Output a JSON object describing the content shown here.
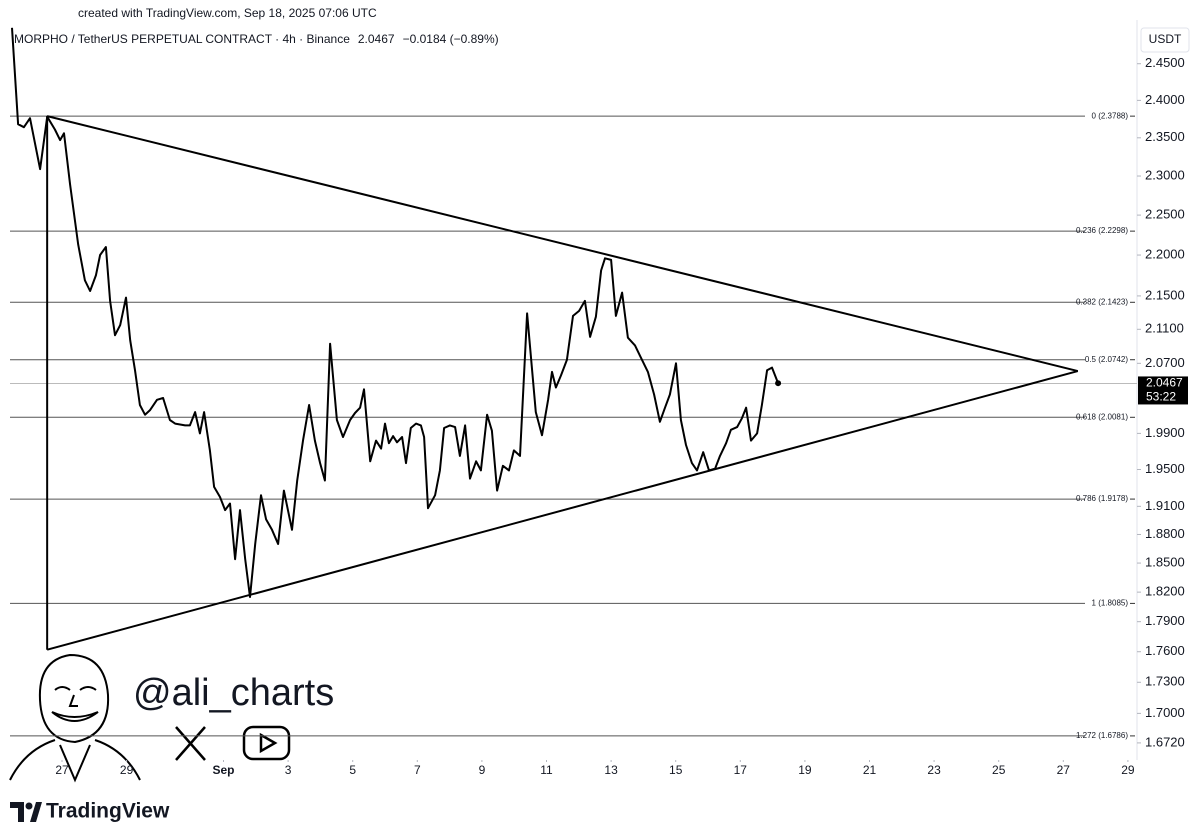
{
  "header": {
    "credit": "created with TradingView.com, Sep 18, 2025 07:06 UTC",
    "symbol": "MORPHO / TetherUS PERPETUAL CONTRACT · 4h · Binance",
    "change": "−0.0184 (−0.89%)"
  },
  "chart_data": {
    "type": "line",
    "currency": "USDT",
    "color": "#000000",
    "log": true,
    "x": [
      -1.55,
      -1.36,
      -1.18,
      -0.99,
      -0.68,
      -0.46,
      -0.22,
      -0.06,
      0.06,
      0.25,
      0.5,
      0.71,
      0.87,
      1.05,
      1.18,
      1.36,
      1.49,
      1.64,
      1.8,
      1.98,
      2.11,
      2.26,
      2.41,
      2.57,
      2.72,
      2.94,
      3.13,
      3.34,
      3.5,
      3.81,
      3.96,
      4.12,
      4.27,
      4.4,
      4.58,
      4.71,
      4.89,
      5.05,
      5.2,
      5.36,
      5.51,
      5.67,
      5.82,
      5.98,
      6.16,
      6.32,
      6.5,
      6.69,
      6.87,
      7.12,
      7.28,
      7.46,
      7.65,
      7.83,
      7.99,
      8.14,
      8.3,
      8.51,
      8.7,
      8.92,
      9.07,
      9.23,
      9.35,
      9.54,
      9.72,
      9.88,
      10.0,
      10.12,
      10.25,
      10.37,
      10.53,
      10.65,
      10.8,
      10.96,
      11.11,
      11.21,
      11.33,
      11.55,
      11.7,
      11.83,
      12.01,
      12.17,
      12.32,
      12.48,
      12.63,
      12.82,
      12.97,
      13.16,
      13.31,
      13.47,
      13.65,
      13.84,
      13.99,
      14.18,
      14.4,
      14.67,
      14.86,
      15.05,
      15.17,
      15.29,
      15.45,
      15.63,
      15.82,
      16.01,
      16.19,
      16.35,
      16.53,
      16.69,
      16.81,
      17.0,
      17.15,
      17.34,
      17.52,
      17.74,
      17.89,
      18.14,
      18.33,
      18.51,
      18.67,
      18.82,
      19.01,
      19.16,
      19.32,
      19.5,
      19.66,
      19.85,
      20.03,
      20.22,
      20.37,
      20.56,
      20.71,
      20.9,
      21.05,
      21.18,
      21.33,
      21.52,
      21.67,
      21.83,
      21.98,
      22.17
    ],
    "values": [
      2.5,
      2.368,
      2.364,
      2.376,
      2.309,
      2.378,
      2.361,
      2.347,
      2.356,
      2.289,
      2.213,
      2.169,
      2.156,
      2.175,
      2.2,
      2.21,
      2.144,
      2.103,
      2.115,
      2.148,
      2.097,
      2.062,
      2.022,
      2.011,
      2.016,
      2.028,
      2.03,
      2.005,
      2.001,
      1.999,
      1.999,
      2.014,
      1.99,
      2.014,
      1.971,
      1.931,
      1.92,
      1.906,
      1.913,
      1.854,
      1.906,
      1.854,
      1.815,
      1.87,
      1.922,
      1.896,
      1.885,
      1.87,
      1.927,
      1.885,
      1.938,
      1.982,
      2.022,
      1.982,
      1.957,
      1.938,
      2.093,
      2.005,
      1.986,
      2.005,
      2.013,
      2.019,
      2.04,
      1.959,
      1.982,
      1.973,
      2.001,
      1.979,
      1.987,
      1.98,
      1.986,
      1.957,
      1.996,
      2.001,
      1.999,
      1.986,
      1.908,
      1.922,
      1.949,
      1.996,
      1.999,
      1.997,
      1.965,
      1.999,
      1.94,
      1.959,
      1.949,
      2.011,
      1.993,
      1.927,
      1.954,
      1.949,
      1.971,
      1.965,
      2.129,
      2.014,
      1.988,
      2.028,
      2.06,
      2.042,
      2.056,
      2.074,
      2.126,
      2.132,
      2.144,
      2.101,
      2.125,
      2.181,
      2.196,
      2.194,
      2.126,
      2.154,
      2.1,
      2.091,
      2.079,
      2.06,
      2.034,
      2.003,
      2.019,
      2.034,
      2.07,
      2.005,
      1.977,
      1.957,
      1.949,
      1.969,
      1.949,
      1.951,
      1.965,
      1.979,
      1.994,
      1.997,
      2.007,
      2.019,
      1.982,
      1.99,
      2.022,
      2.062,
      2.065,
      2.047
    ],
    "last_price": 2.0467,
    "countdown": "53:22",
    "xlim": [
      -1.92,
      33.22
    ],
    "xticks": [
      {
        "value": 0,
        "label": "27"
      },
      {
        "value": 2,
        "label": "29"
      },
      {
        "value": 5,
        "label": "Sep"
      },
      {
        "value": 7,
        "label": "3"
      },
      {
        "value": 9,
        "label": "5"
      },
      {
        "value": 11,
        "label": "7"
      },
      {
        "value": 13,
        "label": "9"
      },
      {
        "value": 15,
        "label": "11"
      },
      {
        "value": 17,
        "label": "13"
      },
      {
        "value": 19,
        "label": "15"
      },
      {
        "value": 21,
        "label": "17"
      },
      {
        "value": 23,
        "label": "19"
      },
      {
        "value": 25,
        "label": "21"
      },
      {
        "value": 27,
        "label": "23"
      },
      {
        "value": 29,
        "label": "25"
      },
      {
        "value": 31,
        "label": "27"
      },
      {
        "value": 33,
        "label": "29"
      }
    ],
    "ylim": [
      1.656,
      2.511
    ],
    "yticks": [
      {
        "value": 2.45,
        "label": "2.4500"
      },
      {
        "value": 2.4,
        "label": "2.4000"
      },
      {
        "value": 2.35,
        "label": "2.3500"
      },
      {
        "value": 2.3,
        "label": "2.3000"
      },
      {
        "value": 2.25,
        "label": "2.2500"
      },
      {
        "value": 2.2,
        "label": "2.2000"
      },
      {
        "value": 2.15,
        "label": "2.1500"
      },
      {
        "value": 2.11,
        "label": "2.1100"
      },
      {
        "value": 2.07,
        "label": "2.0700"
      },
      {
        "value": 1.99,
        "label": "1.9900"
      },
      {
        "value": 1.95,
        "label": "1.9500"
      },
      {
        "value": 1.91,
        "label": "1.9100"
      },
      {
        "value": 1.88,
        "label": "1.8800"
      },
      {
        "value": 1.85,
        "label": "1.8500"
      },
      {
        "value": 1.82,
        "label": "1.8200"
      },
      {
        "value": 1.79,
        "label": "1.7900"
      },
      {
        "value": 1.76,
        "label": "1.7600"
      },
      {
        "value": 1.73,
        "label": "1.7300"
      },
      {
        "value": 1.7,
        "label": "1.7000"
      },
      {
        "value": 1.672,
        "label": "1.6720"
      }
    ],
    "fib_levels": [
      {
        "value": 2.3788,
        "label": "0 (2.3788)"
      },
      {
        "value": 2.2298,
        "label": "0.236 (2.2298)"
      },
      {
        "value": 2.1423,
        "label": "0.382 (2.1423)"
      },
      {
        "value": 2.0742,
        "label": "0.5 (2.0742)"
      },
      {
        "value": 2.0081,
        "label": "0.618 (2.0081)"
      },
      {
        "value": 1.9178,
        "label": "0.786 (1.9178)"
      },
      {
        "value": 1.8085,
        "label": "1 (1.8085)"
      },
      {
        "value": 1.6786,
        "label": "1.272 (1.6786)"
      }
    ],
    "trendlines": [
      {
        "x": [
          -0.46,
          31.45
        ],
        "y": [
          2.3788,
          2.061
        ]
      },
      {
        "x": [
          -0.46,
          31.45
        ],
        "y": [
          1.762,
          2.061
        ]
      },
      {
        "x": [
          -0.46,
          -0.46
        ],
        "y": [
          2.3788,
          1.762
        ]
      }
    ]
  },
  "watermark": {
    "handle": "@ali_charts"
  },
  "footer": {
    "brand": "TradingView"
  }
}
